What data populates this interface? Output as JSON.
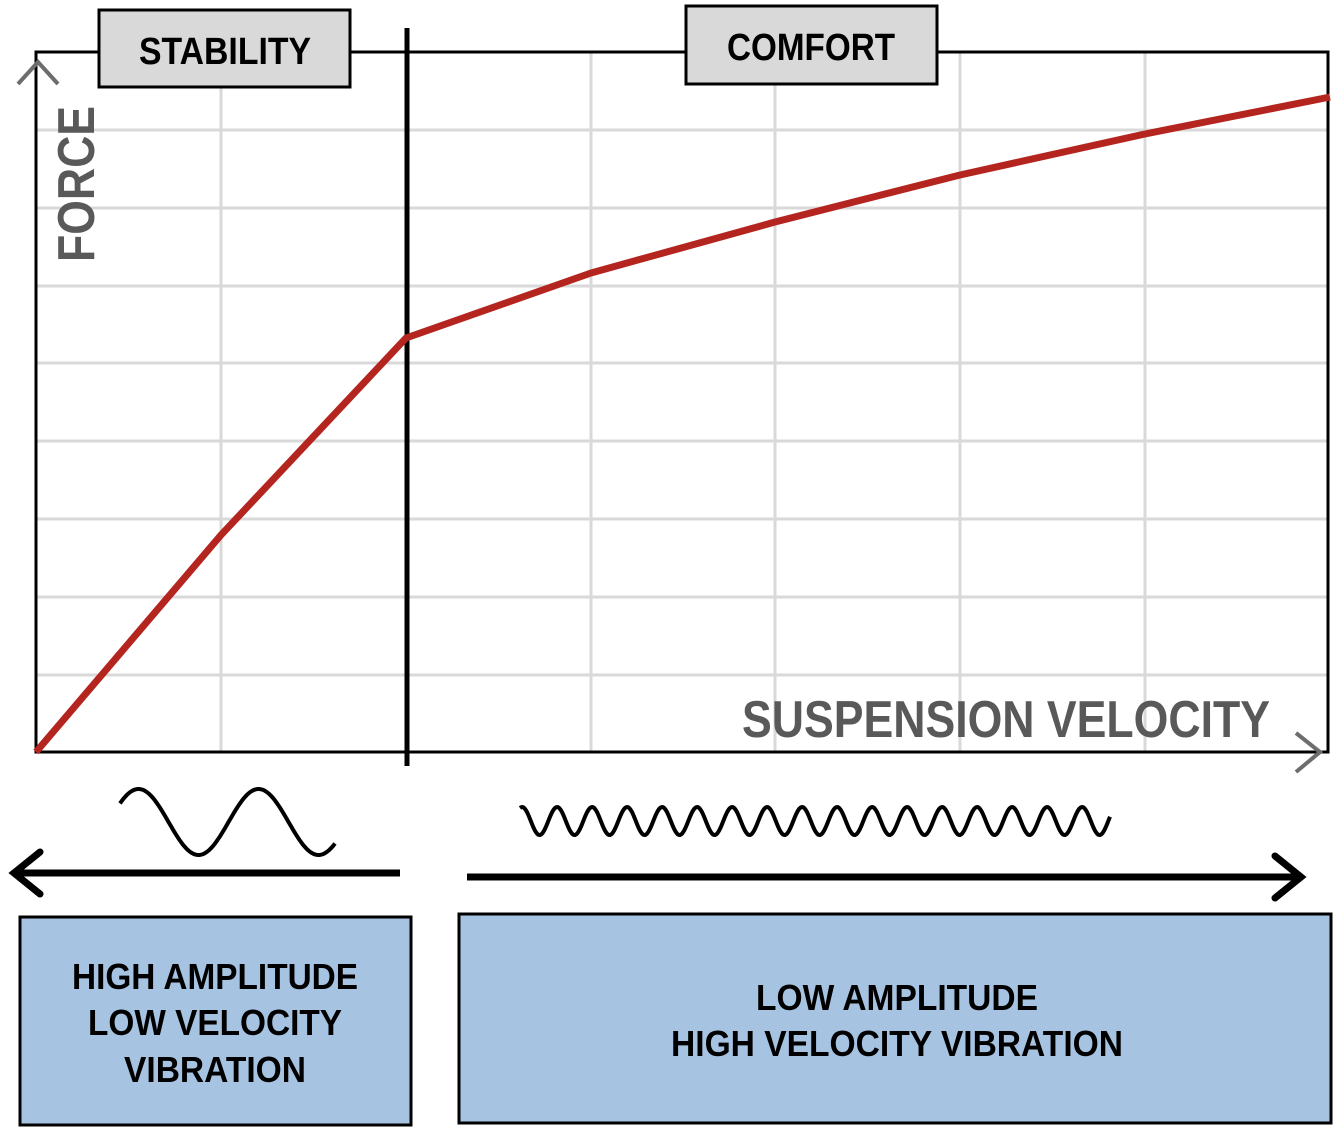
{
  "axes": {
    "y_label": "FORCE",
    "x_label": "SUSPENSION VELOCITY"
  },
  "regions": {
    "left_label": "STABILITY",
    "right_label": "COMFORT"
  },
  "bottom": {
    "left_box_lines": [
      "HIGH AMPLITUDE",
      "LOW VELOCITY",
      "VIBRATION"
    ],
    "right_box_lines": [
      "LOW AMPLITUDE",
      "HIGH VELOCITY VIBRATION"
    ]
  },
  "colors": {
    "curve": "#b5251f",
    "grid": "#d9d9d9",
    "label_box": "#d9d9d9",
    "info_box": "#a7c3e2",
    "axis_label": "#595959"
  },
  "icons": {
    "left_wave": "low-frequency-wave-icon",
    "right_wave": "high-frequency-wave-icon"
  }
}
